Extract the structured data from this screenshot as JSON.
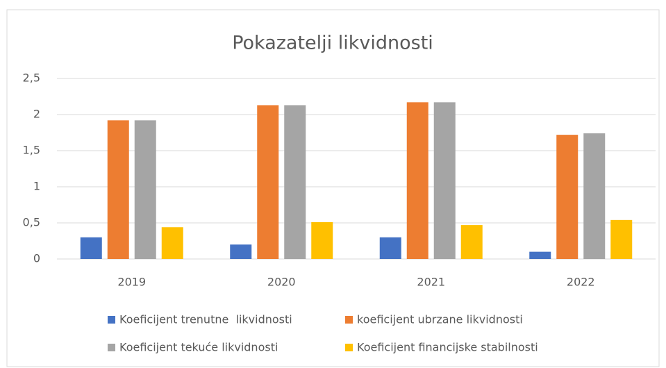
{
  "chart_data": {
    "type": "bar",
    "title": "Pokazatelji likvidnosti",
    "categories": [
      "2019",
      "2020",
      "2021",
      "2022"
    ],
    "series": [
      {
        "name": "Koeficijent trenutne  likvidnosti",
        "color": "#4472c4",
        "values": [
          0.3,
          0.2,
          0.3,
          0.1
        ]
      },
      {
        "name": "koeficijent ubrzane likvidnosti",
        "color": "#ed7d31",
        "values": [
          1.92,
          2.13,
          2.17,
          1.72
        ]
      },
      {
        "name": "Koeficijent tekuće likvidnosti",
        "color": "#a5a5a5",
        "values": [
          1.92,
          2.13,
          2.17,
          1.74
        ]
      },
      {
        "name": "Koeficijent financijske stabilnosti",
        "color": "#ffc000",
        "values": [
          0.44,
          0.51,
          0.47,
          0.54
        ]
      }
    ],
    "ylim": [
      0,
      2.5
    ],
    "yticks": [
      0,
      {
        "value": 0.5,
        "label": "0,5"
      },
      1,
      {
        "value": 1.5,
        "label": "1,5"
      },
      2,
      {
        "value": 2.5,
        "label": "2,5"
      }
    ],
    "grid": true,
    "legend": "bottom"
  }
}
